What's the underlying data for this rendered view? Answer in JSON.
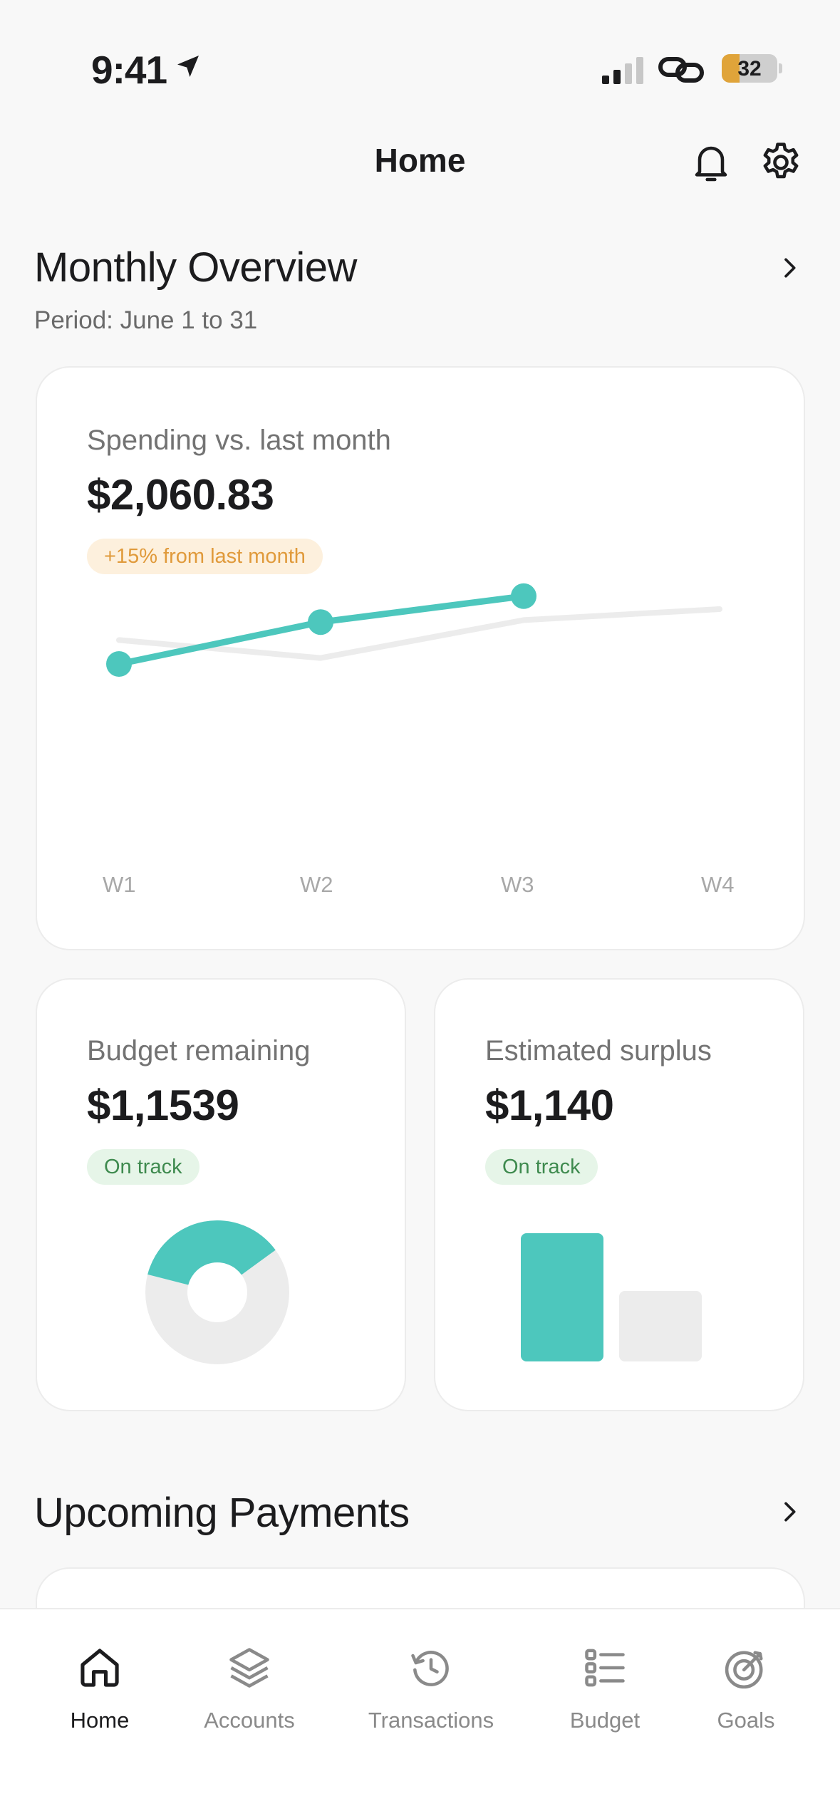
{
  "status_bar": {
    "time": "9:41",
    "battery": "32",
    "battery_level": 0.32
  },
  "nav": {
    "title": "Home"
  },
  "overview": {
    "title": "Monthly Overview",
    "period": "Period: June 1 to 31"
  },
  "spending": {
    "label": "Spending vs. last month",
    "amount": "$2,060.83",
    "badge": "+15% from last month"
  },
  "budget": {
    "label": "Budget remaining",
    "amount": "$1,1539",
    "badge": "On track",
    "donut_fraction": 0.36
  },
  "surplus": {
    "label": "Estimated surplus",
    "amount": "$1,140",
    "badge": "On track"
  },
  "upcoming": {
    "title": "Upcoming Payments"
  },
  "tabs": [
    {
      "label": "Home",
      "icon": "home-icon",
      "active": true
    },
    {
      "label": "Accounts",
      "icon": "layers-icon",
      "active": false
    },
    {
      "label": "Transactions",
      "icon": "history-icon",
      "active": false
    },
    {
      "label": "Budget",
      "icon": "list-icon",
      "active": false
    },
    {
      "label": "Goals",
      "icon": "target-icon",
      "active": false
    }
  ],
  "colors": {
    "accent": "#4dc7bd",
    "muted": "#ececec",
    "warning": "#e09a3b",
    "success": "#3e8a4e"
  },
  "chart_data": [
    {
      "type": "line",
      "categories": [
        "W1",
        "W2",
        "W3",
        "W4"
      ],
      "series": [
        {
          "values": [
            300,
            510,
            640,
            null
          ],
          "color": "#4dc7bd"
        },
        {
          "values": [
            420,
            330,
            520,
            575
          ],
          "color": "#ececec"
        }
      ],
      "ylim": [
        0,
        1000
      ],
      "grid": false
    },
    {
      "type": "pie",
      "values": [
        0.36,
        0.64
      ],
      "colors": [
        "#4dc7bd",
        "#ececec"
      ]
    },
    {
      "type": "bar",
      "values": [
        1.0,
        0.55
      ],
      "colors": [
        "#4dc7bd",
        "#ececec"
      ]
    }
  ]
}
